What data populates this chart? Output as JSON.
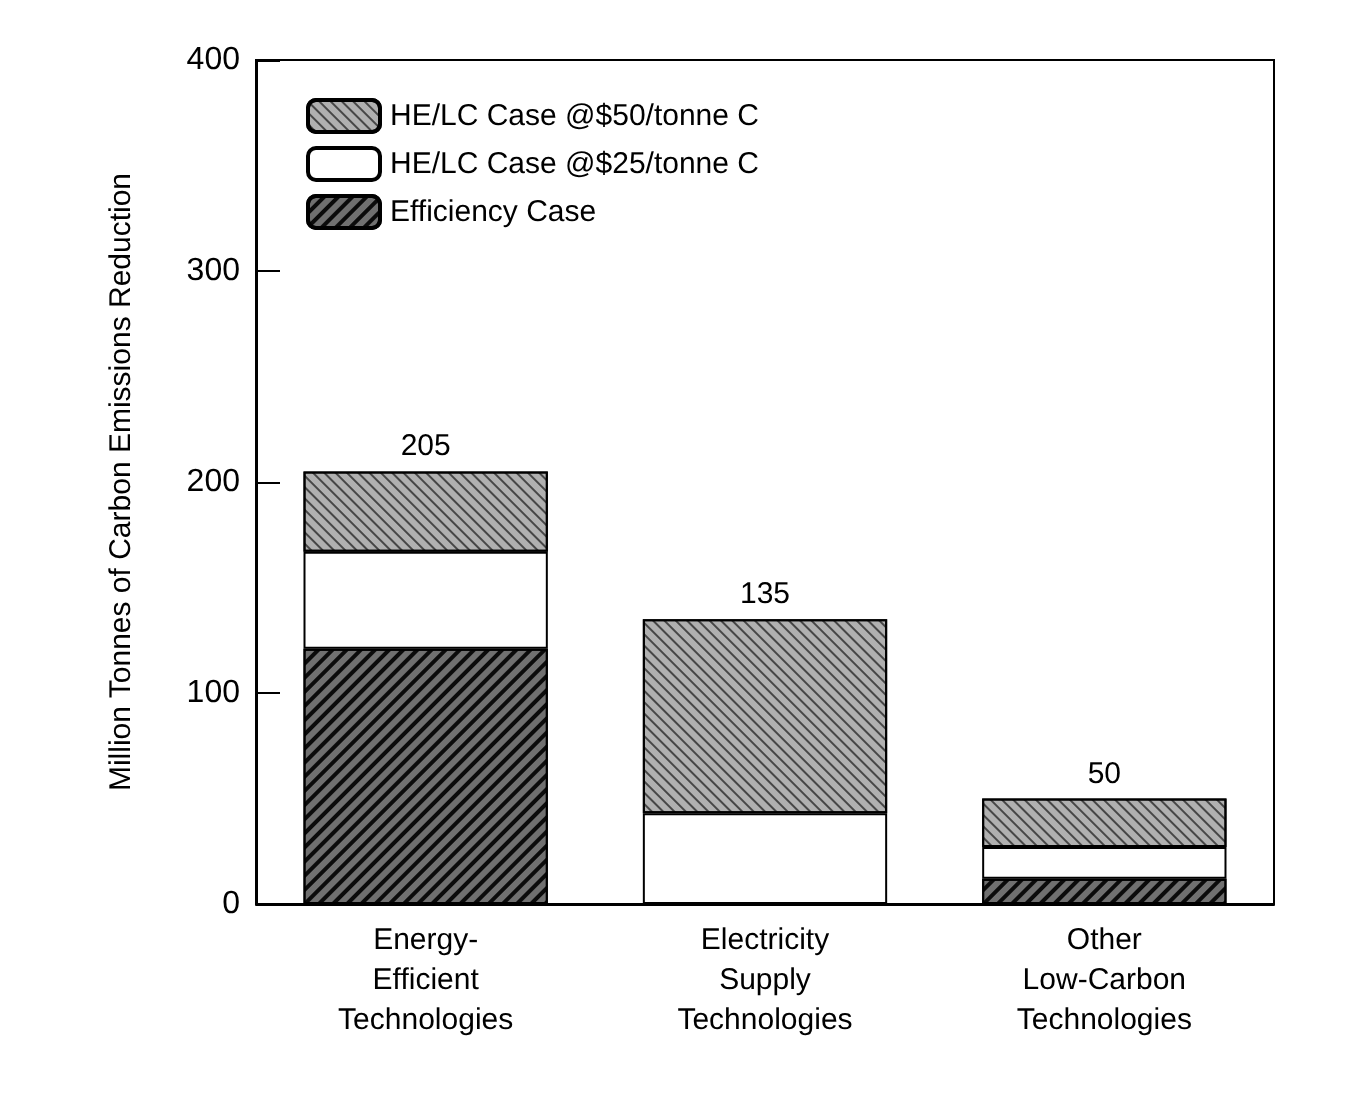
{
  "chart_data": {
    "type": "bar",
    "stacked": true,
    "ylabel": "Million Tonnes of Carbon Emissions Reduction",
    "categories": [
      "Energy-\nEfficient\nTechnologies",
      "Electricity\nSupply\nTechnologies",
      "Other\nLow-Carbon\nTechnologies"
    ],
    "series": [
      {
        "name": "Efficiency Case",
        "color": "#707070",
        "values": [
          121,
          0,
          12
        ]
      },
      {
        "name": "HE/LC Case @$25/tonne C",
        "color": "#ffffff",
        "values": [
          46,
          43,
          15
        ]
      },
      {
        "name": "HE/LC Case @$50/tonne C",
        "color": "#b0b0b0",
        "values": [
          38,
          92,
          23
        ]
      }
    ],
    "totals": [
      "205",
      "135",
      "50"
    ],
    "ylim": [
      0,
      400
    ],
    "yticks": [
      0,
      100,
      200,
      300,
      400
    ],
    "grid": false,
    "legend": "top left"
  }
}
